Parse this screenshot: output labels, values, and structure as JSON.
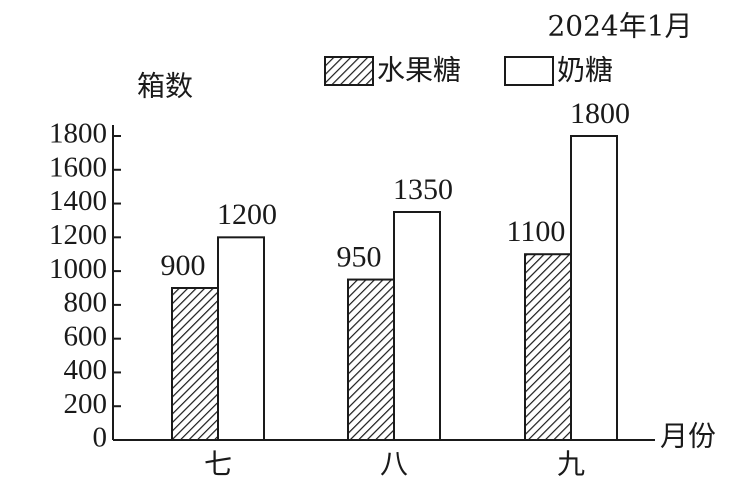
{
  "chart_data": {
    "type": "bar",
    "title": "2024年1月",
    "y_label": "箱数",
    "x_label": "月份",
    "categories": [
      "七",
      "八",
      "九"
    ],
    "series": [
      {
        "name": "水果糖",
        "color": "#1a1a1a",
        "hatch": true,
        "values": [
          900,
          950,
          1100
        ]
      },
      {
        "name": "奶糖",
        "color": "#1a1a1a",
        "hatch": false,
        "values": [
          1200,
          1350,
          1800
        ]
      }
    ],
    "ylim": [
      0,
      1800
    ],
    "yticks": [
      0,
      200,
      400,
      600,
      800,
      1000,
      1200,
      1400,
      1600,
      1800
    ]
  }
}
